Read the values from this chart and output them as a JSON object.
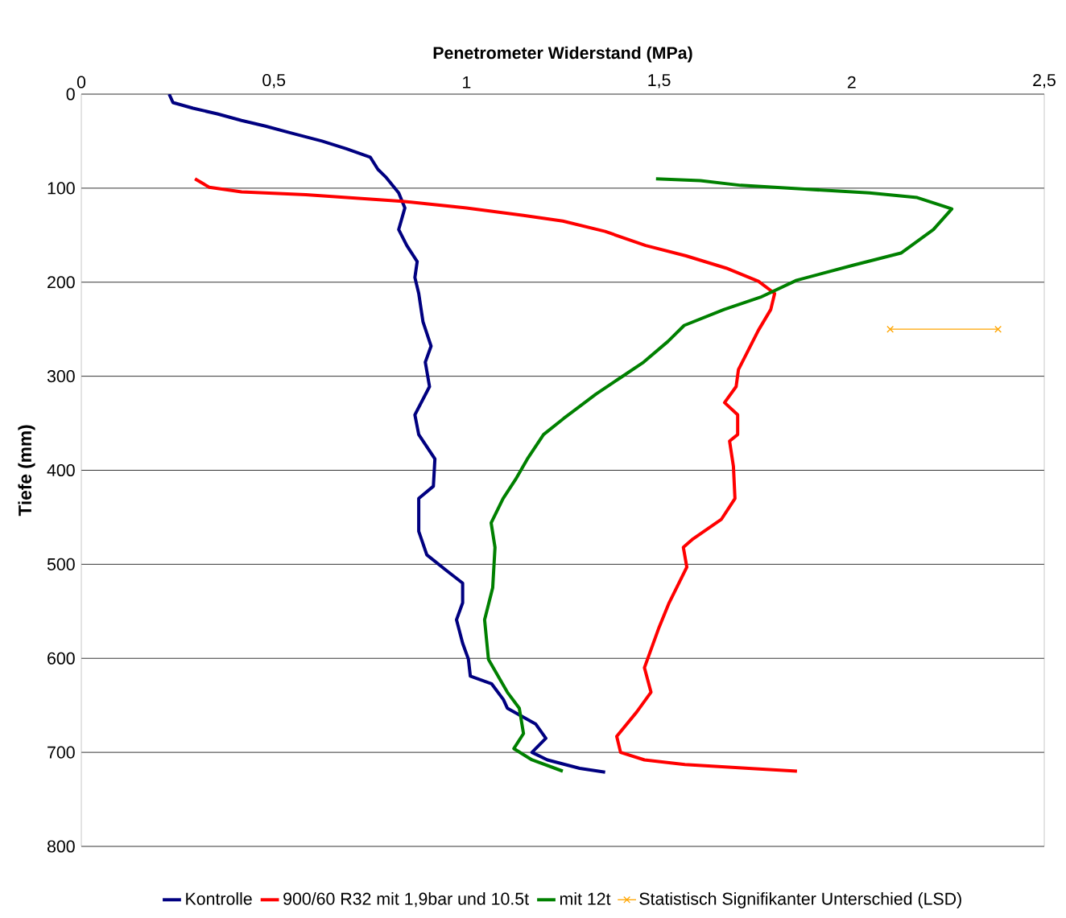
{
  "chart_data": {
    "type": "line",
    "xlabel": "Penetrometer Widerstand (MPa)",
    "ylabel": "Tiefe (mm)",
    "xlim": [
      0,
      2.5
    ],
    "ylim": [
      800,
      0
    ],
    "xticks": [
      0,
      {
        "value": 0.5,
        "label": "0,5"
      },
      1,
      {
        "value": 1.5,
        "label": "1,5"
      },
      2,
      {
        "value": 2.5,
        "label": "2,5"
      }
    ],
    "yticks": [
      0,
      100,
      200,
      300,
      400,
      500,
      600,
      700,
      800
    ],
    "grid": "y",
    "legend": "bottom",
    "marker": "none",
    "line_style": "solid",
    "series": [
      {
        "name": "Kontrolle",
        "color": "#000080",
        "x": [
          0.228,
          0.238,
          0.29,
          0.353,
          0.416,
          0.478,
          0.541,
          0.625,
          0.688,
          0.75,
          0.77,
          0.79,
          0.824,
          0.84,
          0.824,
          0.845,
          0.872,
          0.866,
          0.876,
          0.887,
          0.908,
          0.893,
          0.904,
          0.866,
          0.876,
          0.918,
          0.914,
          0.876,
          0.876,
          0.897,
          0.949,
          0.99,
          0.99,
          0.974,
          0.99,
          1.005,
          1.01,
          1.065,
          1.096,
          1.106,
          1.18,
          1.206,
          1.17,
          1.21,
          1.294,
          1.36
        ],
        "values": [
          0,
          9,
          15,
          21,
          28,
          34,
          41,
          50,
          58,
          67,
          80,
          88,
          105,
          121,
          144,
          161,
          178,
          195,
          212,
          242,
          268,
          285,
          311,
          341,
          362,
          388,
          417,
          430,
          465,
          490,
          507,
          520,
          541,
          559,
          584,
          601,
          619,
          627,
          644,
          653,
          670,
          685,
          700,
          708,
          717,
          721
        ]
      },
      {
        "name": "900/60 R32 mit 1,9bar und 10.5t",
        "color": "#ff0000",
        "x": [
          0.295,
          0.332,
          0.416,
          0.583,
          0.834,
          1.0,
          1.148,
          1.25,
          1.36,
          1.465,
          1.57,
          1.674,
          1.758,
          1.8,
          1.79,
          1.758,
          1.727,
          1.706,
          1.7,
          1.67,
          1.704,
          1.704,
          1.683,
          1.693,
          1.697,
          1.662,
          1.588,
          1.563,
          1.572,
          1.526,
          1.5,
          1.462,
          1.479,
          1.442,
          1.39,
          1.4,
          1.462,
          1.567,
          1.733,
          1.858
        ],
        "values": [
          90,
          99,
          104,
          107,
          114,
          121,
          129,
          135,
          146,
          161,
          172,
          185,
          199,
          212,
          229,
          251,
          276,
          293,
          311,
          328,
          341,
          362,
          369,
          396,
          430,
          452,
          473,
          482,
          503,
          541,
          567,
          610,
          636,
          657,
          683,
          700,
          708,
          713,
          717,
          720
        ]
      },
      {
        "name": "mit 12t",
        "color": "#008000",
        "x": [
          1.492,
          1.607,
          1.712,
          1.878,
          2.046,
          2.17,
          2.26,
          2.212,
          2.128,
          2.003,
          1.857,
          1.763,
          1.669,
          1.565,
          1.523,
          1.46,
          1.398,
          1.336,
          1.252,
          1.2,
          1.158,
          1.127,
          1.095,
          1.064,
          1.074,
          1.068,
          1.047,
          1.057,
          1.106,
          1.137,
          1.148,
          1.123,
          1.17,
          1.25
        ],
        "values": [
          90,
          92,
          97,
          101,
          105,
          110,
          122,
          144,
          169,
          182,
          198,
          216,
          229,
          246,
          263,
          285,
          302,
          319,
          345,
          362,
          388,
          410,
          430,
          456,
          482,
          525,
          559,
          601,
          636,
          653,
          680,
          696,
          708,
          720
        ]
      },
      {
        "name": "Statistisch Signifikanter Unterschied (LSD)",
        "color": "#ffa500",
        "marker": "cross",
        "x": [
          2.1,
          2.38
        ],
        "values": [
          250,
          250
        ]
      }
    ]
  }
}
